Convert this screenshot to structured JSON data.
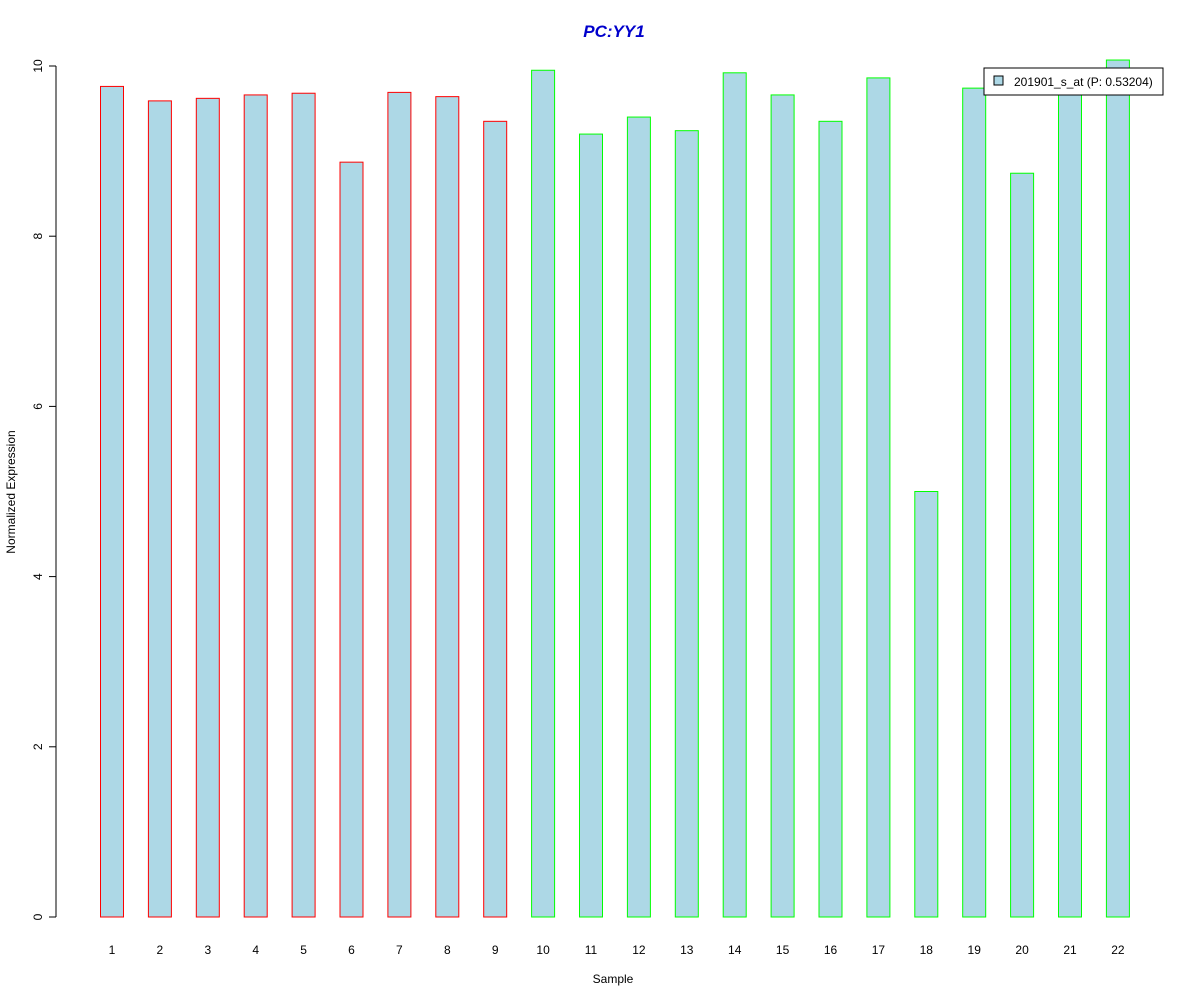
{
  "chart_data": {
    "type": "bar",
    "title": "PC:YY1",
    "xlabel": "Sample",
    "ylabel": "Normalized Expression",
    "ylim": [
      0,
      10
    ],
    "yticks": [
      "0",
      "2",
      "4",
      "6",
      "8",
      "10"
    ],
    "categories": [
      "1",
      "2",
      "3",
      "4",
      "5",
      "6",
      "7",
      "8",
      "9",
      "10",
      "11",
      "12",
      "13",
      "14",
      "15",
      "16",
      "17",
      "18",
      "19",
      "20",
      "21",
      "22"
    ],
    "series": [
      {
        "name": "201901_s_at (P: 0.53204)",
        "values": [
          9.76,
          9.59,
          9.62,
          9.66,
          9.68,
          8.87,
          9.69,
          9.64,
          9.35,
          9.95,
          9.2,
          9.4,
          9.24,
          9.92,
          9.66,
          9.35,
          9.86,
          5.0,
          9.74,
          8.74,
          9.77,
          10.07
        ]
      }
    ],
    "groups": [
      {
        "from": 0,
        "to": 8,
        "outline_color": "#ff0000"
      },
      {
        "from": 9,
        "to": 21,
        "outline_color": "#00ff00"
      }
    ],
    "bar_fill_color": "#add8e6",
    "title_color": "#0000cc",
    "grid": false,
    "legend_position": "top-right"
  }
}
